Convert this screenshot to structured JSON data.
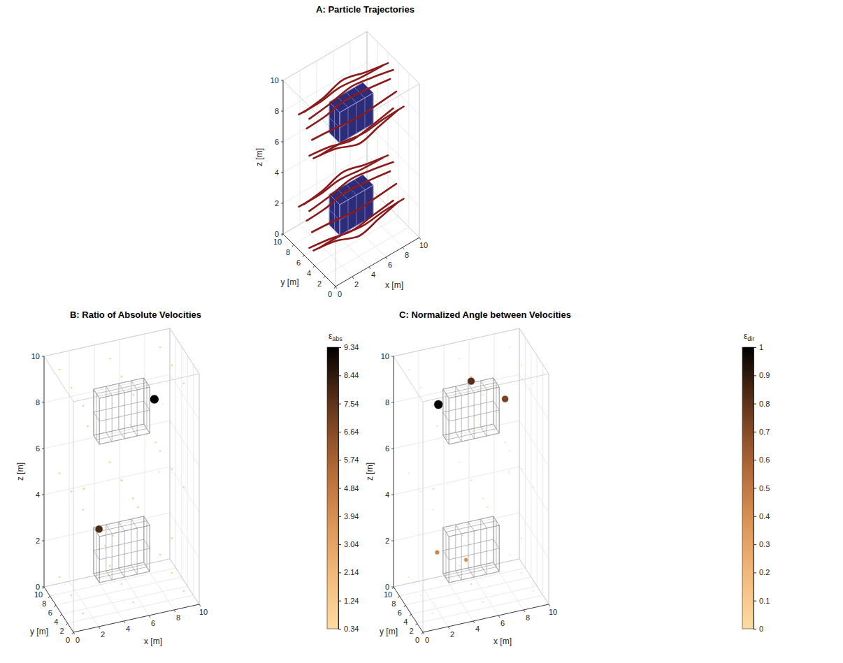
{
  "chart_data": [
    {
      "type": "line3d",
      "title": "A: Particle Trajectories",
      "xlabel": "x [m]",
      "ylabel": "y [m]",
      "zlabel": "z [m]",
      "xlim": [
        0,
        10
      ],
      "ylim": [
        0,
        10
      ],
      "zlim": [
        0,
        10
      ],
      "xticks": [
        0,
        2,
        4,
        6,
        8,
        10
      ],
      "yticks": [
        0,
        2,
        4,
        6,
        8,
        10
      ],
      "zticks": [
        0,
        2,
        4,
        6,
        8,
        10
      ],
      "grid": true,
      "color": "#8b1a1a",
      "obstacles": [
        {
          "x": [
            3,
            7
          ],
          "y": [
            4,
            6
          ],
          "z": [
            7,
            9
          ]
        },
        {
          "x": [
            3,
            7
          ],
          "y": [
            4,
            6
          ],
          "z": [
            1,
            3
          ]
        }
      ],
      "trajectories": [
        {
          "x": [
            0,
            2.5,
            5,
            7.5,
            10
          ],
          "y": [
            4.5,
            4.3,
            3.6,
            4.0,
            4.4
          ],
          "z": [
            8,
            8,
            8.2,
            8.1,
            8
          ]
        },
        {
          "x": [
            0,
            2.5,
            5,
            7.5,
            10
          ],
          "y": [
            5.5,
            5.7,
            6.4,
            6.0,
            5.6
          ],
          "z": [
            8.4,
            8.4,
            8.3,
            8.4,
            8.4
          ]
        },
        {
          "x": [
            0,
            2.5,
            5,
            7.5,
            10
          ],
          "y": [
            5,
            5,
            5,
            5,
            5
          ],
          "z": [
            9.2,
            9.4,
            9.7,
            9.5,
            9.2
          ]
        },
        {
          "x": [
            0,
            2.5,
            5,
            7.5,
            10
          ],
          "y": [
            5,
            5,
            5,
            5,
            5
          ],
          "z": [
            6.8,
            6.6,
            6.2,
            6.4,
            6.7
          ]
        },
        {
          "x": [
            0,
            2.5,
            5,
            7.5,
            10
          ],
          "y": [
            3,
            3,
            2.8,
            2.9,
            3
          ],
          "z": [
            7.5,
            7.5,
            7.4,
            7.5,
            7.5
          ]
        },
        {
          "x": [
            0,
            2.5,
            5,
            7.5,
            10
          ],
          "y": [
            7,
            7,
            7.2,
            7.1,
            7
          ],
          "z": [
            8.8,
            8.8,
            8.9,
            8.8,
            8.8
          ]
        },
        {
          "x": [
            0,
            2.5,
            5,
            7.5,
            10
          ],
          "y": [
            4.2,
            4,
            3.5,
            3.8,
            4.1
          ],
          "z": [
            6.9,
            6.8,
            6.5,
            6.7,
            6.9
          ]
        },
        {
          "x": [
            0,
            2.5,
            5,
            7.5,
            10
          ],
          "y": [
            6,
            6.2,
            6.6,
            6.3,
            6
          ],
          "z": [
            9.3,
            9.4,
            9.6,
            9.4,
            9.3
          ]
        },
        {
          "x": [
            0,
            2.5,
            5,
            7.5,
            10
          ],
          "y": [
            4.5,
            4.3,
            3.6,
            4.0,
            4.4
          ],
          "z": [
            2,
            2,
            2.2,
            2.1,
            2
          ]
        },
        {
          "x": [
            0,
            2.5,
            5,
            7.5,
            10
          ],
          "y": [
            5.5,
            5.7,
            6.4,
            6.0,
            5.6
          ],
          "z": [
            2.4,
            2.4,
            2.3,
            2.4,
            2.4
          ]
        },
        {
          "x": [
            0,
            2.5,
            5,
            7.5,
            10
          ],
          "y": [
            5,
            5,
            5,
            5,
            5
          ],
          "z": [
            3.2,
            3.4,
            3.7,
            3.5,
            3.2
          ]
        },
        {
          "x": [
            0,
            2.5,
            5,
            7.5,
            10
          ],
          "y": [
            5,
            5,
            5,
            5,
            5
          ],
          "z": [
            0.8,
            0.6,
            0.3,
            0.5,
            0.7
          ]
        },
        {
          "x": [
            0,
            2.5,
            5,
            7.5,
            10
          ],
          "y": [
            3,
            3,
            2.8,
            2.9,
            3
          ],
          "z": [
            1.5,
            1.5,
            1.4,
            1.5,
            1.5
          ]
        },
        {
          "x": [
            0,
            2.5,
            5,
            7.5,
            10
          ],
          "y": [
            7,
            7,
            7.2,
            7.1,
            7
          ],
          "z": [
            2.8,
            2.8,
            2.9,
            2.8,
            2.8
          ]
        },
        {
          "x": [
            0,
            2.5,
            5,
            7.5,
            10
          ],
          "y": [
            4.2,
            4,
            3.5,
            3.8,
            4.1
          ],
          "z": [
            0.9,
            0.8,
            0.5,
            0.7,
            0.9
          ]
        },
        {
          "x": [
            0,
            2.5,
            5,
            7.5,
            10
          ],
          "y": [
            6,
            6.2,
            6.6,
            6.3,
            6
          ],
          "z": [
            3.3,
            3.4,
            3.6,
            3.4,
            3.3
          ]
        }
      ]
    },
    {
      "type": "scatter3d",
      "title": "B: Ratio of Absolute Velocities",
      "xlabel": "x [m]",
      "ylabel": "y [m]",
      "zlabel": "z [m]",
      "xlim": [
        0,
        10
      ],
      "ylim": [
        0,
        10
      ],
      "zlim": [
        0,
        10
      ],
      "xticks": [
        0,
        2,
        4,
        6,
        8,
        10
      ],
      "yticks": [
        0,
        2,
        4,
        6,
        8,
        10
      ],
      "zticks": [
        0,
        2,
        4,
        6,
        8,
        10
      ],
      "grid": true,
      "obstacles": [
        {
          "x": [
            3,
            7
          ],
          "y": [
            4,
            6
          ],
          "z": [
            7,
            9
          ]
        },
        {
          "x": [
            3,
            7
          ],
          "y": [
            4,
            6
          ],
          "z": [
            1,
            3
          ]
        }
      ],
      "x": [
        1,
        5,
        9,
        1,
        5,
        9,
        1,
        5,
        9,
        1,
        5,
        9,
        1,
        5,
        9,
        1,
        5,
        9,
        1,
        5,
        9,
        1,
        5,
        9,
        1,
        5,
        9,
        3,
        7,
        3,
        7,
        2,
        8,
        5,
        5,
        9,
        7.6,
        3.2,
        8.3
      ],
      "y": [
        1,
        1,
        1,
        5,
        5,
        5,
        9,
        9,
        9,
        1,
        1,
        1,
        5,
        5,
        5,
        9,
        9,
        9,
        1,
        1,
        1,
        5,
        5,
        5,
        9,
        9,
        9,
        2,
        8,
        8,
        2,
        5,
        5,
        2,
        8,
        5,
        5,
        5,
        5
      ],
      "z": [
        0.5,
        0.5,
        0.5,
        0.5,
        0.5,
        0.5,
        0.5,
        0.5,
        0.5,
        5,
        5,
        5,
        5,
        5,
        5,
        5,
        5,
        5,
        9.5,
        9.5,
        9.5,
        9.5,
        9.5,
        9.5,
        9.5,
        9.5,
        9.5,
        3,
        3,
        7,
        7,
        5,
        5,
        8,
        2,
        2,
        8.2,
        3.1,
        7.9
      ],
      "values": [
        1.0,
        1.05,
        1.0,
        0.95,
        0.8,
        1.0,
        1.0,
        1.05,
        1.0,
        1.0,
        1.1,
        1.0,
        1.05,
        1.3,
        1.05,
        1.0,
        1.1,
        1.0,
        1.0,
        1.05,
        1.0,
        1.0,
        1.2,
        1.0,
        1.0,
        1.05,
        1.0,
        1.1,
        1.05,
        1.1,
        1.05,
        1.15,
        0.7,
        1.1,
        1.1,
        1.0,
        9.34,
        7.9,
        0.34
      ],
      "colorbar": {
        "label": {
          "symbol": "ε",
          "subscript": "abs"
        },
        "range": [
          0.34,
          9.34
        ],
        "ticks": [
          0.34,
          1.24,
          2.14,
          3.04,
          3.94,
          4.84,
          5.74,
          6.64,
          7.54,
          8.44,
          9.34
        ]
      }
    },
    {
      "type": "scatter3d",
      "title": "C: Normalized Angle between Velocities",
      "xlabel": "x [m]",
      "ylabel": "y [m]",
      "zlabel": "z [m]",
      "xlim": [
        0,
        10
      ],
      "ylim": [
        0,
        10
      ],
      "zlim": [
        0,
        10
      ],
      "xticks": [
        0,
        2,
        4,
        6,
        8,
        10
      ],
      "yticks": [
        0,
        2,
        4,
        6,
        8,
        10
      ],
      "zticks": [
        0,
        2,
        4,
        6,
        8,
        10
      ],
      "grid": true,
      "obstacles": [
        {
          "x": [
            3,
            7
          ],
          "y": [
            4,
            6
          ],
          "z": [
            7,
            9
          ]
        },
        {
          "x": [
            3,
            7
          ],
          "y": [
            4,
            6
          ],
          "z": [
            1,
            3
          ]
        }
      ],
      "x": [
        1,
        5,
        9,
        1,
        5,
        9,
        1,
        5,
        9,
        1,
        5,
        9,
        1,
        5,
        9,
        1,
        5,
        9,
        1,
        5,
        9,
        1,
        5,
        9,
        1,
        5,
        9,
        3,
        7,
        3,
        7,
        2,
        8,
        5,
        5,
        9,
        2.4,
        5,
        7.7,
        2.3,
        4.6
      ],
      "y": [
        1,
        1,
        1,
        5,
        5,
        5,
        9,
        9,
        9,
        1,
        1,
        1,
        5,
        5,
        5,
        9,
        9,
        9,
        1,
        1,
        1,
        5,
        5,
        5,
        9,
        9,
        9,
        2,
        8,
        8,
        2,
        5,
        5,
        2,
        8,
        5,
        5,
        5,
        5,
        5,
        5
      ],
      "z": [
        0.5,
        0.5,
        0.5,
        0.5,
        0.5,
        0.5,
        0.5,
        0.5,
        0.5,
        5,
        5,
        5,
        5,
        5,
        5,
        5,
        5,
        5,
        9.5,
        9.5,
        9.5,
        9.5,
        9.5,
        9.5,
        9.5,
        9.5,
        9.5,
        3,
        3,
        7,
        7,
        5,
        5,
        8,
        2,
        2,
        8.6,
        9.3,
        8.2,
        2.2,
        1.6
      ],
      "values": [
        0.01,
        0.02,
        0.01,
        0.02,
        0.05,
        0.02,
        0.01,
        0.02,
        0.01,
        0.01,
        0.02,
        0.01,
        0.02,
        0.04,
        0.02,
        0.01,
        0.02,
        0.01,
        0.01,
        0.02,
        0.01,
        0.02,
        0.06,
        0.02,
        0.01,
        0.02,
        0.01,
        0,
        0.03,
        0.02,
        0.03,
        0.05,
        0.04,
        0.03,
        0.03,
        0.02,
        1,
        0.82,
        0.74,
        0.45,
        0.4
      ],
      "colorbar": {
        "label": {
          "symbol": "ε",
          "subscript": "dir"
        },
        "range": [
          0,
          1
        ],
        "ticks": [
          0,
          0.1,
          0.2,
          0.3,
          0.4,
          0.5,
          0.6,
          0.7,
          0.8,
          0.9,
          1
        ]
      }
    }
  ]
}
